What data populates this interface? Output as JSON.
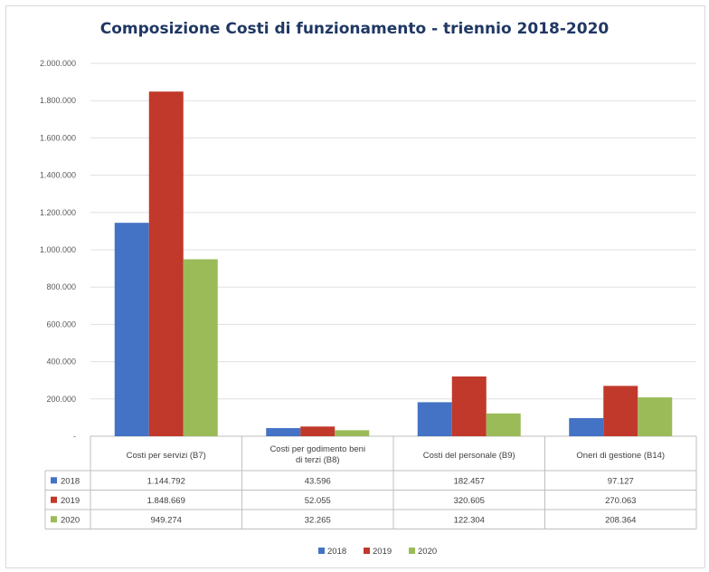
{
  "chart_data": {
    "type": "bar",
    "title": "Composizione Costi di funzionamento - triennio 2018-2020",
    "categories": [
      [
        "Costi per servizi (B7)"
      ],
      [
        "Costi per godimento beni",
        "di terzi (B8)"
      ],
      [
        "Costi del personale (B9)"
      ],
      [
        "Oneri di gestione (B14)"
      ]
    ],
    "series": [
      {
        "name": "2018",
        "color": "#4472c4",
        "values": [
          1144792,
          43596,
          182457,
          97127
        ],
        "labels": [
          "1.144.792",
          "43.596",
          "182.457",
          "97.127"
        ]
      },
      {
        "name": "2019",
        "color": "#c0392b",
        "values": [
          1848669,
          52055,
          320605,
          270063
        ],
        "labels": [
          "1.848.669",
          "52.055",
          "320.605",
          "270.063"
        ]
      },
      {
        "name": "2020",
        "color": "#9bbb59",
        "values": [
          949274,
          32265,
          122304,
          208364
        ],
        "labels": [
          "949.274",
          "32.265",
          "122.304",
          "208.364"
        ]
      }
    ],
    "ylim": [
      0,
      2000000
    ],
    "yticks": [
      0,
      200000,
      400000,
      600000,
      800000,
      1000000,
      1200000,
      1400000,
      1600000,
      1800000,
      2000000
    ],
    "ytick_labels": [
      "-",
      "200.000",
      "400.000",
      "600.000",
      "800.000",
      "1.000.000",
      "1.200.000",
      "1.400.000",
      "1.600.000",
      "1.800.000",
      "2.000.000"
    ],
    "grid": true,
    "data_table": true,
    "legend": "bottom"
  }
}
